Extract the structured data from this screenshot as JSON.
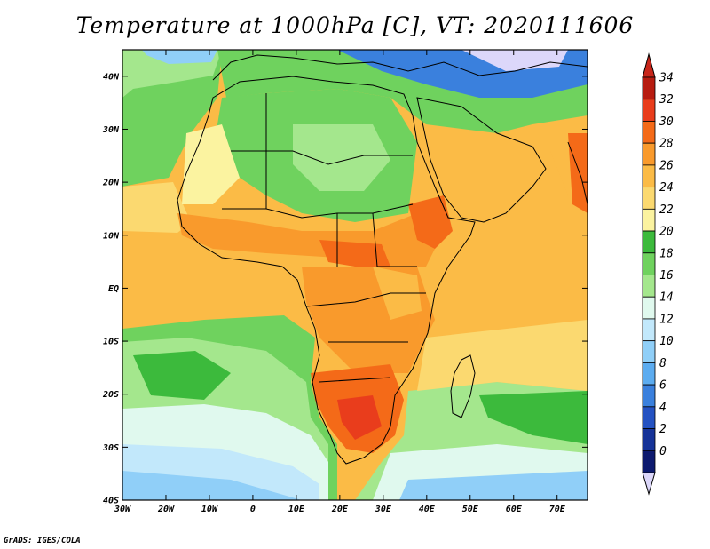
{
  "title": "Temperature at 1000hPa [C], VT: 2020111606",
  "credit": "GrADS: IGES/COLA",
  "map": {
    "lon_ticks": [
      "30W",
      "20W",
      "10W",
      "0",
      "10E",
      "20E",
      "30E",
      "40E",
      "50E",
      "60E",
      "70E"
    ],
    "lat_ticks": [
      "40N",
      "30N",
      "20N",
      "10N",
      "EQ",
      "10S",
      "20S",
      "30S",
      "40S"
    ],
    "lon_range": [
      -30,
      77
    ],
    "lat_range": [
      -40,
      45
    ]
  },
  "colorbar": {
    "labels": [
      "34",
      "32",
      "30",
      "28",
      "26",
      "24",
      "22",
      "20",
      "18",
      "16",
      "14",
      "12",
      "10",
      "8",
      "6",
      "4",
      "2",
      "0"
    ],
    "colors": [
      "#b71c10",
      "#e93d1c",
      "#f46a18",
      "#f99a2c",
      "#fbbb46",
      "#fbd970",
      "#fbf3a0",
      "#3cba3c",
      "#6fd25e",
      "#a4e78d",
      "#e0f9ee",
      "#c2e8fb",
      "#90cff8",
      "#5cacf0",
      "#3a80dd",
      "#2452c2",
      "#163398",
      "#0d1a6f"
    ],
    "top_arrow_color": "#c8261a",
    "bottom_arrow_color": "#dcd7fa"
  }
}
